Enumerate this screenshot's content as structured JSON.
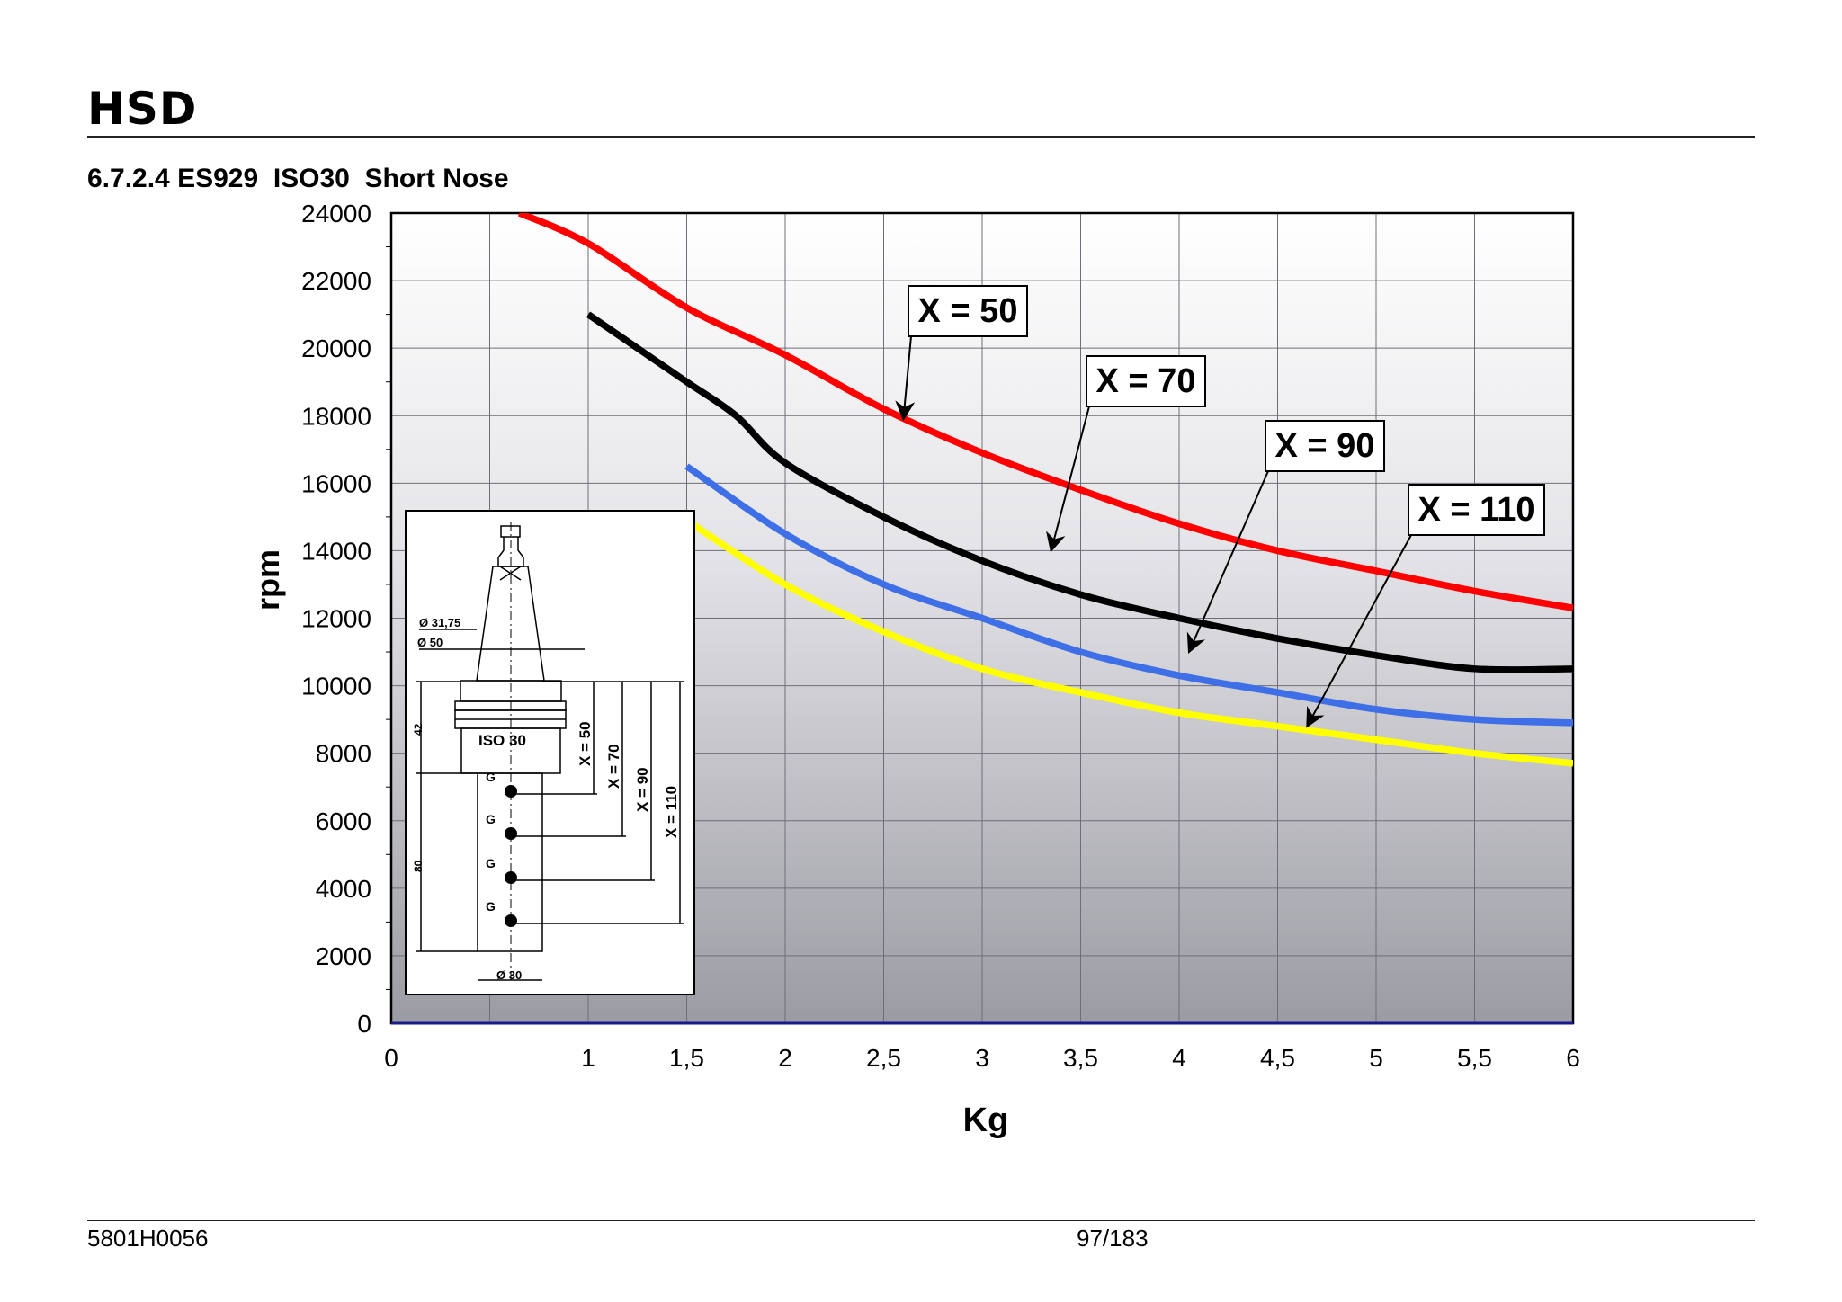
{
  "header": {
    "logo": "HSD",
    "section_title": "6.7.2.4 ES929  ISO30  Short Nose"
  },
  "footer": {
    "doc_code": "5801H0056",
    "page": "97/183"
  },
  "chart_data": {
    "type": "line",
    "title": "6.7.2.4 ES929  ISO30  Short Nose",
    "xlabel": "Kg",
    "ylabel": "rpm",
    "xlim": [
      0,
      6
    ],
    "ylim": [
      0,
      24000
    ],
    "x_ticks": [
      0,
      0.5,
      1,
      1.5,
      2,
      2.5,
      3,
      3.5,
      4,
      4.5,
      5,
      5.5,
      6
    ],
    "x_tick_labels": [
      "0",
      "",
      "1",
      "1,5",
      "2",
      "2,5",
      "3",
      "3,5",
      "4",
      "4,5",
      "5",
      "5,5",
      "6"
    ],
    "y_ticks": [
      0,
      2000,
      4000,
      6000,
      8000,
      10000,
      12000,
      14000,
      16000,
      18000,
      20000,
      22000,
      24000
    ],
    "y_tick_labels": [
      "0",
      "2000",
      "4000",
      "6000",
      "8000",
      "10000",
      "12000",
      "14000",
      "16000",
      "18000",
      "20000",
      "22000",
      "24000"
    ],
    "grid": true,
    "series": [
      {
        "name": "X = 50",
        "color": "#ff0000",
        "points": [
          [
            0.65,
            24000
          ],
          [
            1,
            23100
          ],
          [
            1.5,
            21200
          ],
          [
            2,
            19800
          ],
          [
            2.5,
            18200
          ],
          [
            3,
            16900
          ],
          [
            3.5,
            15800
          ],
          [
            4,
            14800
          ],
          [
            4.5,
            14000
          ],
          [
            5,
            13400
          ],
          [
            5.5,
            12800
          ],
          [
            6,
            12300
          ]
        ],
        "callout": {
          "label": "X = 50",
          "target": [
            2.6,
            17900
          ]
        }
      },
      {
        "name": "X = 70",
        "color": "#000000",
        "points": [
          [
            1,
            21000
          ],
          [
            1.25,
            20000
          ],
          [
            1.5,
            19000
          ],
          [
            1.75,
            18000
          ],
          [
            2,
            16600
          ],
          [
            2.5,
            15000
          ],
          [
            3,
            13700
          ],
          [
            3.5,
            12700
          ],
          [
            4,
            12000
          ],
          [
            4.5,
            11400
          ],
          [
            5,
            10900
          ],
          [
            5.5,
            10500
          ],
          [
            6,
            10500
          ]
        ],
        "callout": {
          "label": "X = 70",
          "target": [
            3.35,
            14000
          ]
        }
      },
      {
        "name": "X = 90",
        "color": "#3f6fe6",
        "points": [
          [
            1.5,
            16500
          ],
          [
            2,
            14500
          ],
          [
            2.5,
            13000
          ],
          [
            3,
            12000
          ],
          [
            3.5,
            11000
          ],
          [
            4,
            10300
          ],
          [
            4.5,
            9800
          ],
          [
            5,
            9300
          ],
          [
            5.5,
            9000
          ],
          [
            6,
            8900
          ]
        ],
        "callout": {
          "label": "X = 90",
          "target": [
            4.05,
            11000
          ]
        }
      },
      {
        "name": "X = 110",
        "color": "#ffff00",
        "points": [
          [
            1.5,
            14900
          ],
          [
            2,
            13000
          ],
          [
            2.5,
            11600
          ],
          [
            3,
            10500
          ],
          [
            3.5,
            9800
          ],
          [
            4,
            9200
          ],
          [
            4.5,
            8800
          ],
          [
            5,
            8400
          ],
          [
            5.5,
            8000
          ],
          [
            6,
            7700
          ]
        ],
        "callout": {
          "label": "X = 110",
          "target": [
            4.65,
            8800
          ]
        }
      }
    ]
  },
  "inset": {
    "dims": [
      "Ø 31,75",
      "Ø 50",
      "42",
      "80",
      "Ø 30"
    ],
    "label": "ISO 30",
    "x_labels": [
      "X = 50",
      "X = 70",
      "X = 90",
      "X = 110"
    ],
    "g": "G"
  }
}
